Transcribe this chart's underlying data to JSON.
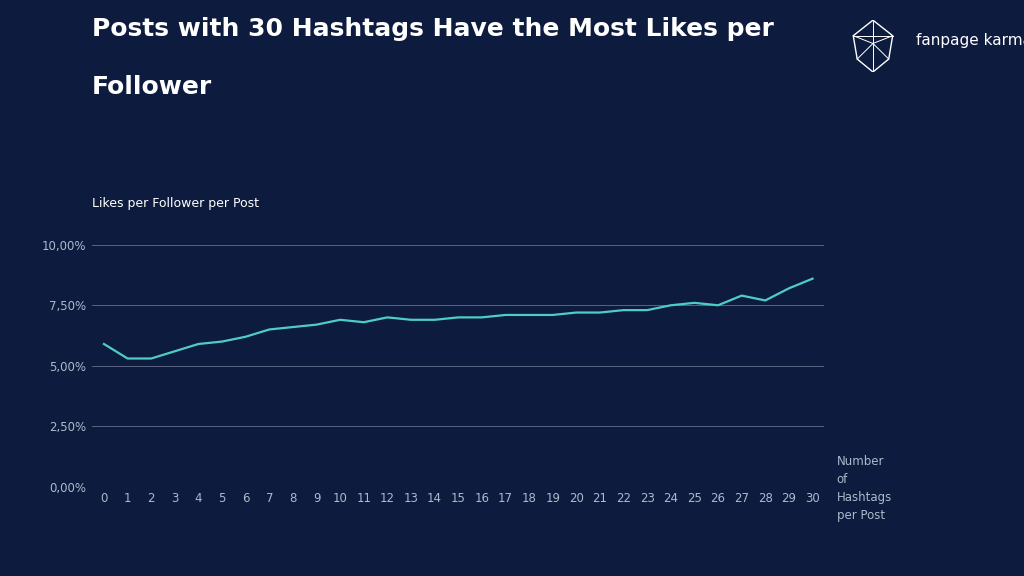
{
  "title_line1": "Posts with 30 Hashtags Have the Most Likes per",
  "title_line2": "Follower",
  "ylabel": "Likes per Follower per Post",
  "xlabel_multiline": "Number\nof\nHashtags\nper Post",
  "background_color": "#0d1b3e",
  "line_color": "#4ecdc4",
  "grid_color": "#5a6480",
  "text_color": "#ffffff",
  "tick_label_color": "#aabbcc",
  "brand_text": "fanpage karma",
  "x_values": [
    0,
    1,
    2,
    3,
    4,
    5,
    6,
    7,
    8,
    9,
    10,
    11,
    12,
    13,
    14,
    15,
    16,
    17,
    18,
    19,
    20,
    21,
    22,
    23,
    24,
    25,
    26,
    27,
    28,
    29,
    30
  ],
  "y_values": [
    0.059,
    0.053,
    0.053,
    0.056,
    0.059,
    0.06,
    0.062,
    0.065,
    0.066,
    0.067,
    0.069,
    0.068,
    0.07,
    0.069,
    0.069,
    0.07,
    0.07,
    0.071,
    0.071,
    0.071,
    0.072,
    0.072,
    0.073,
    0.073,
    0.075,
    0.076,
    0.075,
    0.079,
    0.077,
    0.082,
    0.086
  ],
  "ylim": [
    0,
    0.1
  ],
  "yticks": [
    0.0,
    0.025,
    0.05,
    0.075,
    0.1
  ],
  "ytick_labels": [
    "0,00%",
    "2,50%",
    "5,00%",
    "7,50%",
    "10,00%"
  ],
  "title_fontsize": 18,
  "ylabel_fontsize": 9,
  "tick_fontsize": 8.5,
  "brand_fontsize": 11,
  "figsize": [
    10.24,
    5.76
  ],
  "dpi": 100
}
